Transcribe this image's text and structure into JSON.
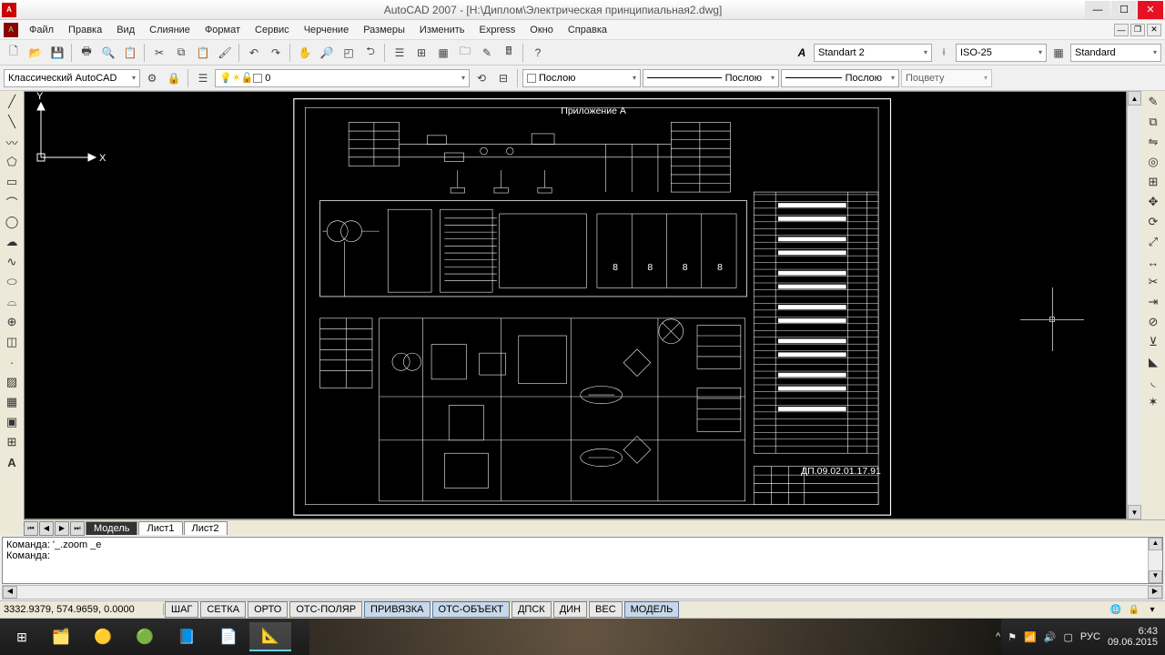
{
  "title": "AutoCAD 2007 - [Н:\\Диплом\\Электрическая принципиальная2.dwg]",
  "menus": [
    "Файл",
    "Правка",
    "Вид",
    "Слияние",
    "Формат",
    "Сервис",
    "Черчение",
    "Размеры",
    "Изменить",
    "Express",
    "Окно",
    "Справка"
  ],
  "toolbar1": {
    "textStyle": "Standart 2",
    "dimStyle": "ISO-25",
    "tableStyle": "Standard"
  },
  "toolbar2": {
    "workspace": "Классический AutoCAD",
    "layer": "0",
    "linetype": "Послою",
    "lineweight": "Послою",
    "linetype2": "Послою",
    "plotstyle": "Поцвету"
  },
  "drawing_title": "Приложение А",
  "drawing_number": "ДП.09.02.01.17.91",
  "tabs": {
    "active": "Модель",
    "others": [
      "Лист1",
      "Лист2"
    ]
  },
  "cmd": {
    "line1": "Команда: '_.zoom _e",
    "line2": "Команда:"
  },
  "status": {
    "coords": "3332.9379, 574.9659, 0.0000",
    "toggles": [
      {
        "label": "ШАГ",
        "on": false
      },
      {
        "label": "СЕТКА",
        "on": false
      },
      {
        "label": "ОРТО",
        "on": false
      },
      {
        "label": "ОТС-ПОЛЯР",
        "on": false
      },
      {
        "label": "ПРИВЯЗКА",
        "on": true
      },
      {
        "label": "ОТС-ОБЪЕКТ",
        "on": true
      },
      {
        "label": "ДПСК",
        "on": false
      },
      {
        "label": "ДИН",
        "on": false
      },
      {
        "label": "ВЕС",
        "on": false
      },
      {
        "label": "МОДЕЛЬ",
        "on": true
      }
    ]
  },
  "tray": {
    "lang": "РУС",
    "time": "6:43",
    "date": "09.06.2015"
  },
  "colors": {
    "canvas_bg": "#000000",
    "drawing_line": "#ffffff",
    "close_btn": "#e81123"
  }
}
